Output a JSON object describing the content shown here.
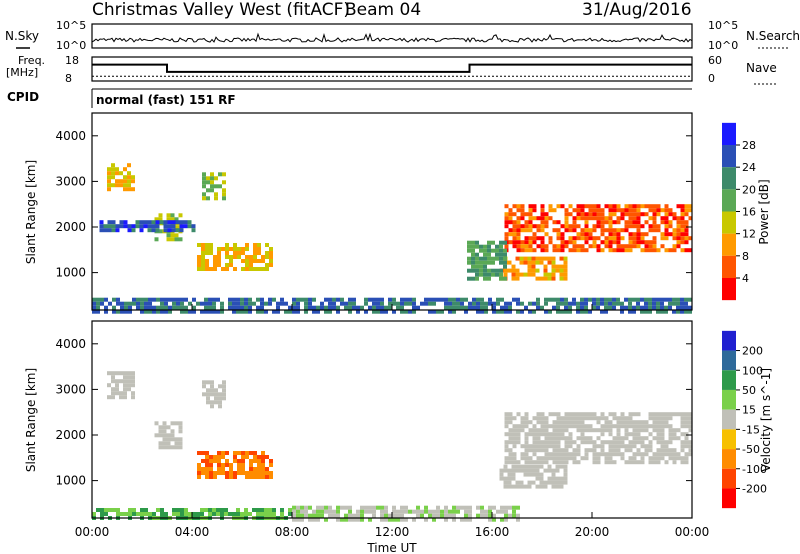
{
  "header": {
    "station": "Christmas Valley West (fitACF)",
    "beam": "Beam 04",
    "date": "31/Aug/2016"
  },
  "status_panels": {
    "nsky_label": "N.Sky",
    "nsky_ticks": [
      "10^5",
      "10^0"
    ],
    "nsearch_label": "N.Search",
    "nsearch_ticks": [
      "10^5",
      "10^0"
    ],
    "freq_label": "Freq.",
    "freq_unit": "[MHz]",
    "freq_ticks": [
      "18",
      "8"
    ],
    "nave_label": "Nave",
    "nave_ticks": [
      "60",
      "0"
    ],
    "cpid_label": "CPID",
    "cpid_text": "normal (fast) 151 RF",
    "freq_steps": [
      {
        "t0": 0.0,
        "t1": 3.0,
        "mhz": 14.8
      },
      {
        "t0": 3.0,
        "t1": 15.1,
        "mhz": 11.8
      },
      {
        "t0": 15.1,
        "t1": 24.0,
        "mhz": 14.8
      }
    ],
    "nave_level": 12
  },
  "chart_data": [
    {
      "type": "heatmap",
      "title": "",
      "xlabel": "Time UT",
      "ylabel": "Slant Range [km]",
      "x_ticks": [
        "00:00",
        "04:00",
        "08:00",
        "12:00",
        "16:00",
        "20:00",
        "00:00"
      ],
      "xlim": [
        0,
        24
      ],
      "ylim": [
        180,
        4500
      ],
      "y_ticks": [
        1000,
        2000,
        3000,
        4000
      ],
      "colorbar_label": "Power [dB]",
      "colorbar_ticks": [
        "4",
        "8",
        "12",
        "16",
        "20",
        "24",
        "28"
      ],
      "colorbar_colors": [
        "#1a1aff",
        "#2a4fb5",
        "#3d8a6a",
        "#5aa855",
        "#c8c800",
        "#ff9a00",
        "#ff5500",
        "#ff0000"
      ],
      "regions": [
        {
          "t0": 0.6,
          "t1": 1.6,
          "r0": 2800,
          "r1": 3400,
          "level": 20
        },
        {
          "t0": 2.5,
          "t1": 3.6,
          "r0": 1750,
          "r1": 2300,
          "level": 16
        },
        {
          "t0": 4.4,
          "t1": 5.3,
          "r0": 2600,
          "r1": 3200,
          "level": 16
        },
        {
          "t0": 4.2,
          "t1": 7.2,
          "r0": 1050,
          "r1": 1650,
          "level": 20
        },
        {
          "t0": 0.3,
          "t1": 4.0,
          "r0": 1900,
          "r1": 2150,
          "level": 6
        },
        {
          "t0": 16.5,
          "t1": 24.0,
          "r0": 1500,
          "r1": 2500,
          "level": 26
        },
        {
          "t0": 16.3,
          "t1": 19.0,
          "r0": 850,
          "r1": 1350,
          "level": 22
        },
        {
          "t0": 15.0,
          "t1": 16.5,
          "r0": 900,
          "r1": 1700,
          "level": 12
        },
        {
          "t0": 0.0,
          "t1": 24.0,
          "r0": 180,
          "r1": 450,
          "level": 8
        }
      ]
    },
    {
      "type": "heatmap",
      "title": "",
      "xlabel": "Time UT",
      "ylabel": "Slant Range [km]",
      "x_ticks": [
        "00:00",
        "04:00",
        "08:00",
        "12:00",
        "16:00",
        "20:00",
        "00:00"
      ],
      "xlim": [
        0,
        24
      ],
      "ylim": [
        180,
        4500
      ],
      "y_ticks": [
        1000,
        2000,
        3000,
        4000
      ],
      "colorbar_label": "Velocity [m s^-1]",
      "colorbar_ticks": [
        "200",
        "100",
        "50",
        "15",
        "-15",
        "-50",
        "-100",
        "-200"
      ],
      "colorbar_colors": [
        "#2020d0",
        "#2e6a9a",
        "#2d9a4a",
        "#7ad04a",
        "#c0c0b8",
        "#f7c000",
        "#ff8c00",
        "#ff4400",
        "#ff0000"
      ],
      "regions": [
        {
          "t0": 0.6,
          "t1": 1.6,
          "r0": 2800,
          "r1": 3400,
          "level": 0
        },
        {
          "t0": 2.5,
          "t1": 3.6,
          "r0": 1750,
          "r1": 2300,
          "level": 0
        },
        {
          "t0": 4.4,
          "t1": 5.3,
          "r0": 2600,
          "r1": 3200,
          "level": 0
        },
        {
          "t0": 4.2,
          "t1": 7.2,
          "r0": 1050,
          "r1": 1650,
          "level": -70
        },
        {
          "t0": 16.5,
          "t1": 24.0,
          "r0": 1400,
          "r1": 2500,
          "level": 0
        },
        {
          "t0": 16.3,
          "t1": 19.0,
          "r0": 850,
          "r1": 1350,
          "level": 0
        },
        {
          "t0": 8.0,
          "t1": 17.0,
          "r0": 180,
          "r1": 450,
          "level": 10
        },
        {
          "t0": 0.0,
          "t1": 8.0,
          "r0": 180,
          "r1": 400,
          "level": 30
        }
      ]
    }
  ]
}
